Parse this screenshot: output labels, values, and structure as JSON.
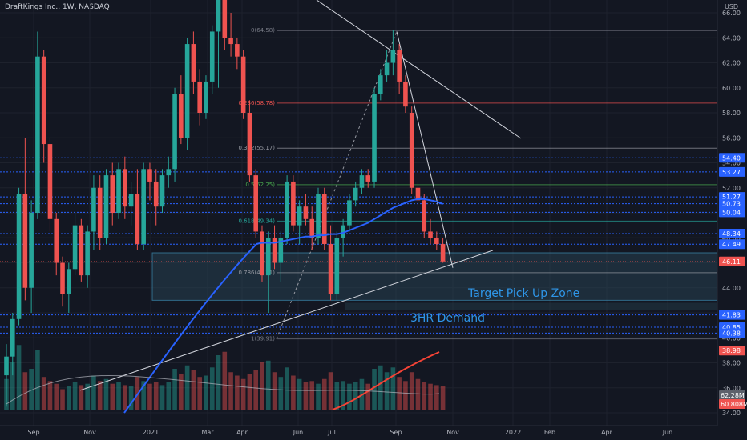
{
  "header": {
    "title": "DraftKings Inc., 1W, NASDAQ",
    "currency": "USD"
  },
  "colors": {
    "bg": "#131722",
    "up": "#26a69a",
    "down": "#ef5350",
    "ma": "#2962ff",
    "grid": "#1e222d",
    "zone": "#2a4a5a"
  },
  "chart_data": {
    "type": "candlestick",
    "y_ticks": [
      "66.00",
      "64.00",
      "62.00",
      "60.00",
      "58.00",
      "56.00",
      "54.00",
      "52.00",
      "50.00",
      "48.00",
      "46.00",
      "44.00",
      "42.00",
      "40.00",
      "38.00",
      "36.00",
      "34.00"
    ],
    "x_ticks": [
      "Sep",
      "Nov",
      "2021",
      "Mar",
      "Apr",
      "Jun",
      "Jul",
      "Sep",
      "Nov",
      "2022",
      "Feb",
      "Apr",
      "Jun"
    ],
    "price_tags": [
      {
        "label": "54.40",
        "value": 54.4,
        "color": "#2962ff"
      },
      {
        "label": "53.27",
        "value": 53.27,
        "color": "#2962ff"
      },
      {
        "label": "51.27",
        "value": 51.27,
        "color": "#2962ff"
      },
      {
        "label": "50.73",
        "value": 50.73,
        "color": "#2962ff"
      },
      {
        "label": "50.04",
        "value": 50.04,
        "color": "#2962ff"
      },
      {
        "label": "48.34",
        "value": 48.34,
        "color": "#2962ff"
      },
      {
        "label": "47.49",
        "value": 47.49,
        "color": "#2962ff"
      },
      {
        "label": "46.11",
        "value": 46.11,
        "color": "#ef5350"
      },
      {
        "label": "41.83",
        "value": 41.83,
        "color": "#2962ff"
      },
      {
        "label": "40.85",
        "value": 40.85,
        "color": "#2962ff"
      },
      {
        "label": "40.38",
        "value": 40.38,
        "color": "#2962ff"
      },
      {
        "label": "38.98",
        "value": 38.98,
        "color": "#ef5350"
      }
    ],
    "volume_tags": [
      {
        "label": "62.28M",
        "color": "#5d606b"
      },
      {
        "label": "60.808M",
        "color": "#ef5350"
      }
    ],
    "fib_levels": [
      {
        "label": "0(64.58)",
        "value": 64.58,
        "color": "#787b86"
      },
      {
        "label": "0.236(58.78)",
        "value": 58.78,
        "color": "#ef5350"
      },
      {
        "label": "0.382(55.17)",
        "value": 55.17,
        "color": "#9598a1"
      },
      {
        "label": "0.5(52.25)",
        "value": 52.25,
        "color": "#4caf50"
      },
      {
        "label": "0.618(49.34)",
        "value": 49.34,
        "color": "#26a69a"
      },
      {
        "label": "0.786(45.21)",
        "value": 45.21,
        "color": "#9598a1"
      },
      {
        "label": "1(39.91)",
        "value": 39.91,
        "color": "#787b86"
      }
    ],
    "annotations": [
      "Target Pick Up Zone",
      "3HR Demand"
    ],
    "candles": [
      [
        37.0,
        39.5,
        34.5,
        38.5
      ],
      [
        38.5,
        42.0,
        37.0,
        41.5
      ],
      [
        41.5,
        52.0,
        41.0,
        51.5
      ],
      [
        51.5,
        56.0,
        43.0,
        44.0
      ],
      [
        44.0,
        51.0,
        42.0,
        50.0
      ],
      [
        50.0,
        64.5,
        49.5,
        62.5
      ],
      [
        62.5,
        63.0,
        54.0,
        55.5
      ],
      [
        55.5,
        56.0,
        48.5,
        49.5
      ],
      [
        49.5,
        50.0,
        45.0,
        46.0
      ],
      [
        46.0,
        46.5,
        42.5,
        43.5
      ],
      [
        43.5,
        46.0,
        42.0,
        45.5
      ],
      [
        45.5,
        50.0,
        45.0,
        49.0
      ],
      [
        49.0,
        49.5,
        44.5,
        45.0
      ],
      [
        45.0,
        49.0,
        44.0,
        48.5
      ],
      [
        48.5,
        53.0,
        47.0,
        52.0
      ],
      [
        52.0,
        53.0,
        47.0,
        48.0
      ],
      [
        48.0,
        53.5,
        47.5,
        53.0
      ],
      [
        53.0,
        54.0,
        49.0,
        50.0
      ],
      [
        50.0,
        54.0,
        49.5,
        53.5
      ],
      [
        53.5,
        54.5,
        49.5,
        50.5
      ],
      [
        50.5,
        52.5,
        49.0,
        51.5
      ],
      [
        51.5,
        53.5,
        47.0,
        47.5
      ],
      [
        47.5,
        54.0,
        47.0,
        53.5
      ],
      [
        53.5,
        54.0,
        51.0,
        52.5
      ],
      [
        52.5,
        53.5,
        49.0,
        50.5
      ],
      [
        50.5,
        53.5,
        50.0,
        53.0
      ],
      [
        53.0,
        54.5,
        52.0,
        53.5
      ],
      [
        53.5,
        60.0,
        52.5,
        59.5
      ],
      [
        59.5,
        61.0,
        55.5,
        56.0
      ],
      [
        56.0,
        64.0,
        55.0,
        63.5
      ],
      [
        63.5,
        64.5,
        59.5,
        60.5
      ],
      [
        60.5,
        61.5,
        57.0,
        58.0
      ],
      [
        58.0,
        61.0,
        57.5,
        60.5
      ],
      [
        60.5,
        65.0,
        59.5,
        64.5
      ],
      [
        64.5,
        72.0,
        60.0,
        71.0
      ],
      [
        71.0,
        74.0,
        63.0,
        64.0
      ],
      [
        64.0,
        66.0,
        62.5,
        63.5
      ],
      [
        63.5,
        64.0,
        61.5,
        62.5
      ],
      [
        62.5,
        63.0,
        57.5,
        58.0
      ],
      [
        58.0,
        59.0,
        52.5,
        53.0
      ],
      [
        53.0,
        53.5,
        48.0,
        48.5
      ],
      [
        48.5,
        49.0,
        44.5,
        45.0
      ],
      [
        45.0,
        48.5,
        42.0,
        48.0
      ],
      [
        48.0,
        49.0,
        45.5,
        46.0
      ],
      [
        46.0,
        48.5,
        44.5,
        48.0
      ],
      [
        48.0,
        53.0,
        47.5,
        52.5
      ],
      [
        52.5,
        53.0,
        48.5,
        49.0
      ],
      [
        49.0,
        51.0,
        47.5,
        50.5
      ],
      [
        50.5,
        51.5,
        49.0,
        49.5
      ],
      [
        49.5,
        50.5,
        47.0,
        48.0
      ],
      [
        48.0,
        52.0,
        47.5,
        51.5
      ],
      [
        51.5,
        52.0,
        47.0,
        47.5
      ],
      [
        47.5,
        49.0,
        43.0,
        43.5
      ],
      [
        43.5,
        48.5,
        43.0,
        48.0
      ],
      [
        48.0,
        49.5,
        46.5,
        49.0
      ],
      [
        49.0,
        51.5,
        48.5,
        51.0
      ],
      [
        51.0,
        52.5,
        50.5,
        52.0
      ],
      [
        52.0,
        53.5,
        51.5,
        53.0
      ],
      [
        53.0,
        53.5,
        52.0,
        52.5
      ],
      [
        52.5,
        60.0,
        52.0,
        59.5
      ],
      [
        59.5,
        61.5,
        59.0,
        61.0
      ],
      [
        61.0,
        63.0,
        60.5,
        62.0
      ],
      [
        62.0,
        64.6,
        61.0,
        63.0
      ],
      [
        63.0,
        63.5,
        59.5,
        60.5
      ],
      [
        60.5,
        61.0,
        58.0,
        58.5
      ],
      [
        58.0,
        58.5,
        51.5,
        52.0
      ],
      [
        52.0,
        52.5,
        50.0,
        51.0
      ],
      [
        51.0,
        51.5,
        48.0,
        48.5
      ],
      [
        48.5,
        49.5,
        47.5,
        48.0
      ],
      [
        48.0,
        48.5,
        47.0,
        47.5
      ],
      [
        47.5,
        48.0,
        46.0,
        46.11
      ]
    ],
    "volume": [
      45,
      70,
      95,
      55,
      60,
      88,
      48,
      42,
      38,
      30,
      35,
      40,
      36,
      38,
      50,
      42,
      45,
      38,
      40,
      36,
      35,
      48,
      42,
      38,
      40,
      36,
      40,
      60,
      52,
      65,
      58,
      48,
      50,
      62,
      80,
      85,
      55,
      50,
      45,
      52,
      58,
      70,
      72,
      55,
      48,
      62,
      50,
      45,
      40,
      42,
      38,
      45,
      55,
      40,
      42,
      38,
      40,
      45,
      38,
      60,
      65,
      55,
      62,
      48,
      42,
      55,
      45,
      40,
      38,
      36,
      35
    ],
    "ma": [
      null,
      null,
      null,
      null,
      null,
      null,
      null,
      null,
      null,
      null,
      null,
      null,
      null,
      null,
      null,
      null,
      null,
      null,
      null,
      null,
      null,
      null,
      null,
      null,
      null,
      null,
      null,
      null,
      null,
      null,
      null,
      null,
      null,
      null,
      null,
      null,
      null,
      null,
      null,
      null,
      47.5,
      47.6,
      47.6,
      47.6,
      47.7,
      47.8,
      47.9,
      48.0,
      48.1,
      48.1,
      48.2,
      48.2,
      48.3,
      48.3,
      48.4,
      48.6,
      48.8,
      49.0,
      49.2,
      49.5,
      49.8,
      50.1,
      50.4,
      50.6,
      50.8,
      51.0,
      51.1,
      51.1,
      51.0,
      50.9,
      50.7
    ]
  }
}
